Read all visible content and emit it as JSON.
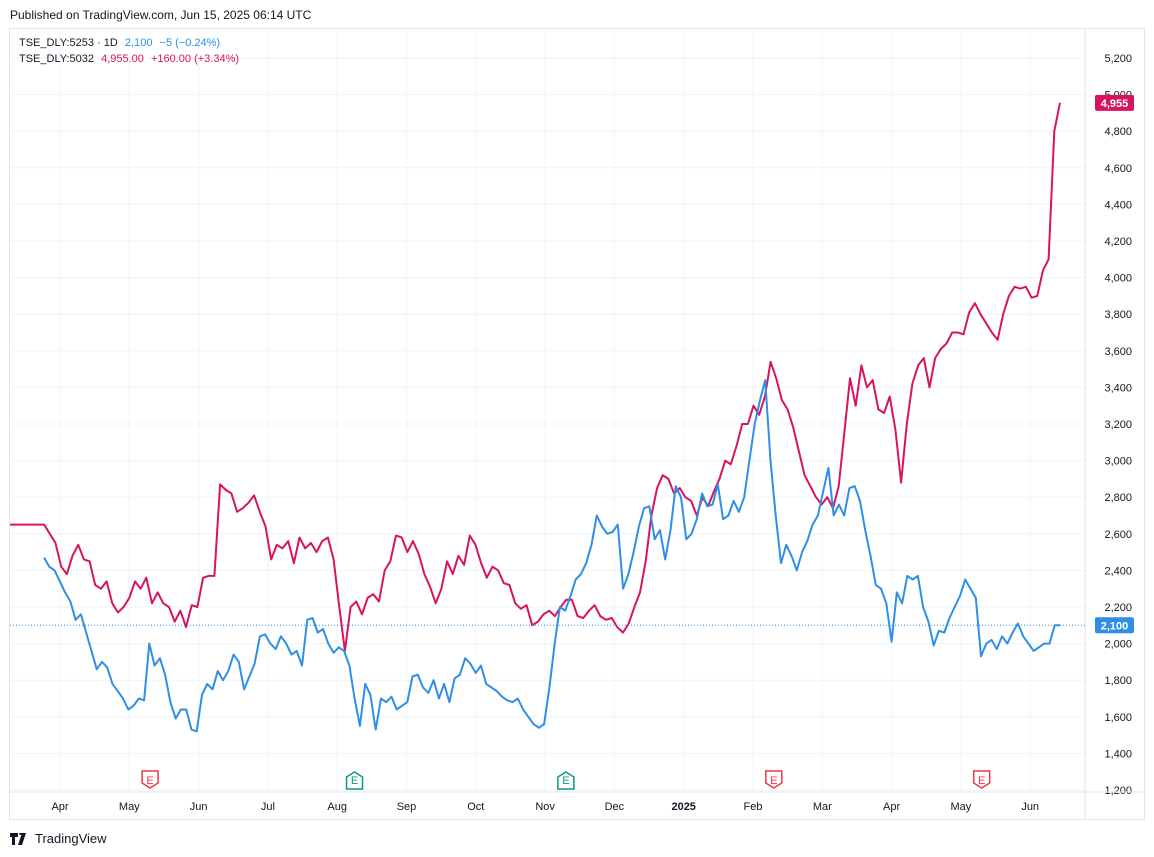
{
  "header": {
    "published": "Published on TradingView.com, Jun 15, 2025 06:14 UTC"
  },
  "legend": {
    "s1": {
      "symbol": "TSE_DLY:5253 · 1D",
      "price": "2,100",
      "change": "−5 (−0.24%)"
    },
    "s2": {
      "symbol": "TSE_DLY:5032",
      "price": "4,955.00",
      "change": "+160.00 (+3.34%)"
    }
  },
  "footer": {
    "brand": "TradingView"
  },
  "chart_data": {
    "type": "line",
    "x_unit": "months since Apr 2024",
    "xlim": [
      -0.72,
      14.75
    ],
    "ylim": [
      1200,
      5200
    ],
    "grid": true,
    "yticks": [
      5200,
      5000,
      4800,
      4600,
      4400,
      4200,
      4000,
      3800,
      3600,
      3400,
      3200,
      3000,
      2800,
      2600,
      2400,
      2200,
      2000,
      1800,
      1600,
      1400,
      1200
    ],
    "ytick_labels": [
      "5,200",
      "5,000",
      "4,800",
      "4,600",
      "4,400",
      "4,200",
      "4,000",
      "3,800",
      "3,600",
      "3,400",
      "3,200",
      "3,000",
      "2,800",
      "2,600",
      "2,400",
      "2,200",
      "2,000",
      "1,800",
      "1,600",
      "1,400",
      "1,200"
    ],
    "xticks": [
      {
        "t": 0,
        "label": "Apr"
      },
      {
        "t": 1,
        "label": "May"
      },
      {
        "t": 2,
        "label": "Jun"
      },
      {
        "t": 3,
        "label": "Jul"
      },
      {
        "t": 4,
        "label": "Aug"
      },
      {
        "t": 5,
        "label": "Sep"
      },
      {
        "t": 6,
        "label": "Oct"
      },
      {
        "t": 7,
        "label": "Nov"
      },
      {
        "t": 8,
        "label": "Dec"
      },
      {
        "t": 9,
        "label": "2025",
        "bold": true
      },
      {
        "t": 10,
        "label": "Feb"
      },
      {
        "t": 11,
        "label": "Mar"
      },
      {
        "t": 12,
        "label": "Apr"
      },
      {
        "t": 13,
        "label": "May"
      },
      {
        "t": 14,
        "label": "Jun"
      }
    ],
    "earnings": [
      {
        "t": 1.3,
        "color": "#f23645",
        "dir": "down",
        "label": "E"
      },
      {
        "t": 4.25,
        "color": "#089981",
        "dir": "up",
        "label": "E"
      },
      {
        "t": 7.3,
        "color": "#089981",
        "dir": "up",
        "label": "E"
      },
      {
        "t": 10.3,
        "color": "#f23645",
        "dir": "down",
        "label": "E"
      },
      {
        "t": 13.3,
        "color": "#f23645",
        "dir": "down",
        "label": "E"
      }
    ],
    "series": [
      {
        "name": "TSE_DLY:5032",
        "color": "#d6145f",
        "last": 4955,
        "last_label": "4,955",
        "t_start": -0.72,
        "t_end": 14.43,
        "values": [
          2650,
          2650,
          2650,
          2650,
          2650,
          2650,
          2650,
          2600,
          2550,
          2420,
          2380,
          2480,
          2540,
          2460,
          2450,
          2320,
          2300,
          2340,
          2220,
          2170,
          2200,
          2250,
          2340,
          2300,
          2360,
          2220,
          2280,
          2220,
          2200,
          2120,
          2180,
          2090,
          2210,
          2200,
          2360,
          2370,
          2370,
          2870,
          2840,
          2820,
          2720,
          2740,
          2770,
          2810,
          2720,
          2640,
          2460,
          2540,
          2520,
          2560,
          2440,
          2580,
          2520,
          2550,
          2500,
          2560,
          2580,
          2460,
          2200,
          1960,
          2200,
          2230,
          2160,
          2250,
          2270,
          2230,
          2400,
          2450,
          2590,
          2580,
          2500,
          2560,
          2490,
          2380,
          2310,
          2220,
          2300,
          2450,
          2380,
          2480,
          2430,
          2590,
          2540,
          2440,
          2360,
          2420,
          2400,
          2330,
          2320,
          2220,
          2190,
          2210,
          2100,
          2120,
          2160,
          2180,
          2150,
          2200,
          2240,
          2240,
          2150,
          2140,
          2180,
          2210,
          2150,
          2130,
          2140,
          2090,
          2060,
          2110,
          2200,
          2280,
          2450,
          2700,
          2850,
          2920,
          2900,
          2820,
          2850,
          2800,
          2780,
          2700,
          2800,
          2750,
          2830,
          2900,
          3000,
          2980,
          3080,
          3200,
          3200,
          3300,
          3250,
          3350,
          3540,
          3450,
          3330,
          3280,
          3180,
          3050,
          2920,
          2860,
          2800,
          2760,
          2800,
          2740,
          2860,
          3150,
          3450,
          3300,
          3520,
          3400,
          3440,
          3280,
          3260,
          3350,
          3170,
          2880,
          3200,
          3420,
          3520,
          3560,
          3400,
          3560,
          3610,
          3640,
          3700,
          3700,
          3690,
          3810,
          3860,
          3800,
          3750,
          3700,
          3660,
          3800,
          3900,
          3950,
          3940,
          3950,
          3890,
          3900,
          4040,
          4100,
          4800,
          4955
        ]
      },
      {
        "name": "TSE_DLY:5253",
        "color": "#2f8fe6",
        "last": 2100,
        "last_label": "2,100",
        "t_start": -0.23,
        "t_end": 14.43,
        "values": [
          2470,
          2420,
          2400,
          2340,
          2280,
          2230,
          2130,
          2160,
          2060,
          1960,
          1860,
          1900,
          1870,
          1780,
          1740,
          1700,
          1640,
          1660,
          1700,
          1690,
          2000,
          1880,
          1920,
          1830,
          1680,
          1590,
          1640,
          1640,
          1530,
          1520,
          1720,
          1780,
          1750,
          1850,
          1800,
          1850,
          1940,
          1900,
          1750,
          1820,
          1890,
          2040,
          2050,
          2000,
          1970,
          2040,
          2000,
          1940,
          1960,
          1880,
          2130,
          2140,
          2060,
          2080,
          2000,
          1950,
          1980,
          1960,
          1880,
          1700,
          1550,
          1780,
          1720,
          1530,
          1700,
          1680,
          1710,
          1640,
          1660,
          1680,
          1820,
          1830,
          1760,
          1730,
          1800,
          1700,
          1780,
          1680,
          1810,
          1830,
          1920,
          1890,
          1840,
          1880,
          1780,
          1760,
          1740,
          1710,
          1690,
          1680,
          1700,
          1640,
          1600,
          1560,
          1540,
          1560,
          1760,
          2000,
          2200,
          2180,
          2260,
          2350,
          2380,
          2440,
          2540,
          2700,
          2640,
          2600,
          2610,
          2650,
          2300,
          2380,
          2500,
          2640,
          2740,
          2750,
          2570,
          2620,
          2460,
          2620,
          2860,
          2800,
          2570,
          2600,
          2680,
          2820,
          2750,
          2760,
          2870,
          2680,
          2700,
          2780,
          2720,
          2800,
          3000,
          3200,
          3330,
          3440,
          3000,
          2700,
          2440,
          2540,
          2480,
          2400,
          2500,
          2560,
          2650,
          2700,
          2830,
          2960,
          2700,
          2760,
          2700,
          2850,
          2860,
          2780,
          2620,
          2480,
          2320,
          2300,
          2220,
          2010,
          2280,
          2220,
          2370,
          2350,
          2370,
          2200,
          2120,
          1990,
          2070,
          2060,
          2140,
          2200,
          2260,
          2350,
          2300,
          2250,
          1930,
          2000,
          2020,
          1970,
          2040,
          2000,
          2060,
          2110,
          2040,
          2000,
          1960,
          1980,
          2000,
          2000,
          2100,
          2100
        ]
      }
    ]
  }
}
